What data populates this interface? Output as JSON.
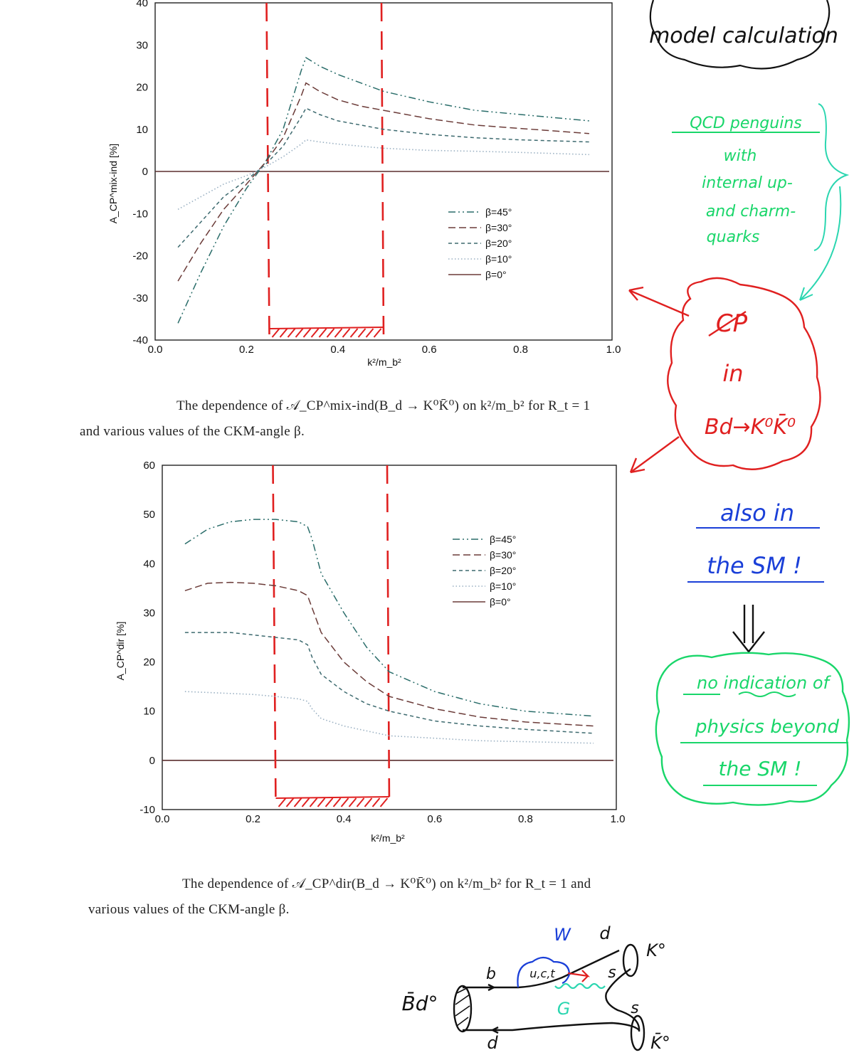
{
  "chart_data": [
    {
      "type": "line",
      "title": "",
      "xlabel": "k²/m_b²",
      "ylabel": "A_CP^mix-ind [%]",
      "xlim": [
        0.0,
        1.0
      ],
      "ylim": [
        -40,
        40
      ],
      "xticks": [
        "0.0",
        "0.2",
        "0.4",
        "0.6",
        "0.8",
        "1.0"
      ],
      "yticks": [
        "-40",
        "-30",
        "-20",
        "-10",
        "0",
        "10",
        "20",
        "30",
        "40"
      ],
      "legend_position": "right",
      "legend": [
        "β=45°",
        "β=30°",
        "β=20°",
        "β=10°",
        "β=0°"
      ],
      "highlight_band": [
        0.25,
        0.5
      ],
      "x": [
        0.05,
        0.1,
        0.15,
        0.2,
        0.24,
        0.28,
        0.3,
        0.32,
        0.33,
        0.36,
        0.4,
        0.45,
        0.5,
        0.6,
        0.7,
        0.8,
        0.95
      ],
      "series": [
        {
          "name": "β=45°",
          "values": [
            -36,
            -24,
            -13,
            -4,
            2,
            10,
            17,
            24,
            27,
            25,
            23,
            21,
            19,
            16.5,
            14.5,
            13.5,
            12
          ]
        },
        {
          "name": "β=30°",
          "values": [
            -26,
            -17,
            -9,
            -3,
            2,
            8,
            13,
            18,
            21,
            19,
            17,
            15.5,
            14.5,
            12.5,
            11,
            10.2,
            9
          ]
        },
        {
          "name": "β=20°",
          "values": [
            -18,
            -12,
            -6,
            -2,
            1.5,
            6,
            9.5,
            13,
            15,
            13.5,
            12,
            11,
            10,
            8.8,
            8,
            7.5,
            7
          ]
        },
        {
          "name": "β=10°",
          "values": [
            -9,
            -6,
            -3,
            -1,
            1,
            3.5,
            5,
            6.5,
            7.5,
            7,
            6.5,
            6,
            5.5,
            5,
            4.8,
            4.5,
            4
          ]
        },
        {
          "name": "β=0°",
          "values": [
            0,
            0,
            0,
            0,
            0.2,
            0.4,
            0.5,
            0.6,
            0.6,
            0.7,
            0.8,
            0.9,
            1,
            1.2,
            1.4,
            1.6,
            1.8
          ]
        }
      ]
    },
    {
      "type": "line",
      "title": "",
      "xlabel": "k²/m_b²",
      "ylabel": "A_CP^dir [%]",
      "xlim": [
        0.0,
        1.0
      ],
      "ylim": [
        -10,
        60
      ],
      "xticks": [
        "0.0",
        "0.2",
        "0.4",
        "0.6",
        "0.8",
        "1.0"
      ],
      "yticks": [
        "-10",
        "0",
        "10",
        "20",
        "30",
        "40",
        "50",
        "60"
      ],
      "legend_position": "top-right",
      "legend": [
        "β=45°",
        "β=30°",
        "β=20°",
        "β=10°",
        "β=0°"
      ],
      "highlight_band": [
        0.25,
        0.5
      ],
      "x": [
        0.05,
        0.1,
        0.15,
        0.2,
        0.25,
        0.3,
        0.32,
        0.33,
        0.35,
        0.4,
        0.45,
        0.5,
        0.6,
        0.7,
        0.8,
        0.95
      ],
      "series": [
        {
          "name": "β=45°",
          "values": [
            44,
            47,
            48.5,
            49,
            49,
            48.5,
            47.5,
            45,
            38,
            30,
            23,
            18,
            14,
            11.5,
            10,
            9
          ]
        },
        {
          "name": "β=30°",
          "values": [
            34.5,
            36,
            36.2,
            36,
            35.5,
            34.5,
            33.5,
            31,
            26,
            20,
            16,
            13,
            10.5,
            8.8,
            7.8,
            7
          ]
        },
        {
          "name": "β=20°",
          "values": [
            26,
            26,
            26,
            25.5,
            25,
            24.5,
            23.5,
            21,
            17.5,
            14,
            11.5,
            10,
            8,
            7,
            6.3,
            5.5
          ]
        },
        {
          "name": "β=10°",
          "values": [
            14,
            13.8,
            13.6,
            13.4,
            13,
            12.5,
            12,
            10.5,
            8.5,
            7,
            6,
            5,
            4.5,
            4,
            3.8,
            3.5
          ]
        },
        {
          "name": "β=0°",
          "values": [
            0.2,
            0.3,
            0.3,
            0.4,
            0.4,
            0.5,
            0.5,
            0.6,
            0.6,
            0.7,
            0.8,
            0.9,
            1,
            1.1,
            1.2,
            1.3
          ]
        }
      ]
    }
  ],
  "captions": {
    "top_line1": "The dependence of 𝒜_CP^mix-ind(B_d → K⁰K̄⁰) on k²/m_b² for R_t = 1",
    "top_line2": "and various values of the CKM-angle β.",
    "bottom_line1": "The dependence of 𝒜_CP^dir(B_d → K⁰K̄⁰) on k²/m_b² for R_t = 1 and",
    "bottom_line2": "various values of the CKM-angle β."
  },
  "annotations": {
    "cloud_top": "model calculation",
    "qcd_line1": "QCD penguins",
    "qcd_line2": "with",
    "qcd_line3": "internal up-",
    "qcd_line4": "and charm-",
    "qcd_line5": "quarks",
    "cp_line1": "CP",
    "cp_line2": "in",
    "cp_line3": "Bd→K⁰K̄⁰",
    "sm_line1": "also in",
    "sm_line2": "the SM !",
    "nophys_line1": "no indication of",
    "nophys_line2": "physics beyond",
    "nophys_line3": "the SM !"
  },
  "diagram": {
    "w": "W",
    "d_top": "d",
    "k0": "K°",
    "b": "b",
    "uct": "u,c,t",
    "s_top": "s",
    "bd": "B̄d°",
    "g": "G",
    "s_bot": "s",
    "d_bot": "d",
    "k0bar": "K̄°"
  },
  "colors": {
    "red": "#e02020",
    "green": "#19d66a",
    "teal": "#2bd6b0",
    "blue": "#1a3fd8",
    "ink": "#111111"
  }
}
